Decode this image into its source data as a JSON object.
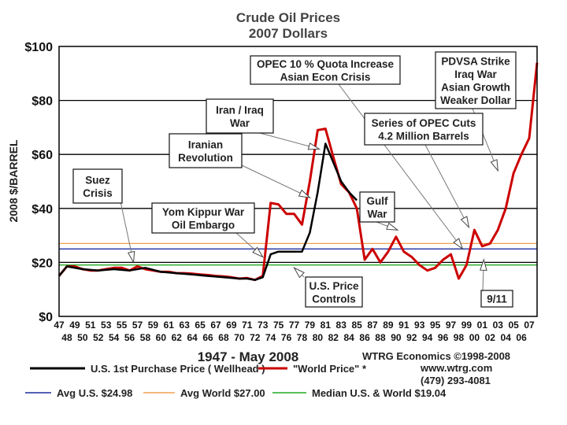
{
  "chart_data": {
    "type": "line",
    "title": "Crude Oil Prices",
    "subtitle": "2007 Dollars",
    "ylabel": "2008 $/BARREL",
    "xlabel": "1947 - May 2008",
    "ylim": [
      0,
      100
    ],
    "xlim": [
      1947,
      2008
    ],
    "grid": true,
    "y_ticks": [
      "$0",
      "$20",
      "$40",
      "$60",
      "$80",
      "$100"
    ],
    "x_ticks_top": [
      "47",
      "49",
      "51",
      "53",
      "55",
      "57",
      "59",
      "61",
      "63",
      "65",
      "67",
      "69",
      "71",
      "73",
      "75",
      "77",
      "79",
      "81",
      "83",
      "85",
      "87",
      "89",
      "91",
      "93",
      "95",
      "97",
      "99",
      "01",
      "03",
      "05",
      "07"
    ],
    "x_ticks_bottom": [
      "48",
      "50",
      "52",
      "54",
      "56",
      "58",
      "60",
      "62",
      "64",
      "66",
      "68",
      "70",
      "72",
      "74",
      "76",
      "78",
      "80",
      "82",
      "84",
      "86",
      "88",
      "90",
      "92",
      "94",
      "96",
      "98",
      "00",
      "02",
      "04",
      "06"
    ],
    "series": [
      {
        "name": "U.S. 1st Purchase Price ( Wellhead )",
        "color": "#000000",
        "x": [
          1947,
          1948,
          1950,
          1952,
          1954,
          1956,
          1958,
          1960,
          1962,
          1964,
          1966,
          1968,
          1970,
          1971,
          1972,
          1973,
          1974,
          1975,
          1976,
          1977,
          1978,
          1979,
          1980,
          1981,
          1982,
          1983,
          1984,
          1985
        ],
        "y": [
          15,
          18.5,
          17.5,
          17,
          17.5,
          17,
          18,
          16.5,
          16,
          15.5,
          15,
          14.5,
          14,
          14,
          13.5,
          14.5,
          23,
          24,
          24,
          24,
          24,
          31,
          46,
          64,
          57,
          50,
          46,
          43
        ]
      },
      {
        "name": "\"World Price\" *",
        "color": "#cc0000",
        "x": [
          1947,
          1948,
          1949,
          1950,
          1951,
          1952,
          1953,
          1954,
          1955,
          1956,
          1957,
          1958,
          1959,
          1960,
          1961,
          1962,
          1963,
          1964,
          1965,
          1966,
          1967,
          1968,
          1969,
          1970,
          1971,
          1972,
          1973,
          1974,
          1975,
          1976,
          1977,
          1978,
          1979,
          1980,
          1981,
          1982,
          1983,
          1984,
          1985,
          1986,
          1987,
          1988,
          1989,
          1990,
          1991,
          1992,
          1993,
          1994,
          1995,
          1996,
          1997,
          1998,
          1999,
          2000,
          2001,
          2002,
          2003,
          2004,
          2005,
          2006,
          2007,
          2008
        ],
        "y": [
          15,
          18.5,
          18.5,
          17.5,
          17,
          17,
          17.5,
          18,
          18,
          17,
          18.5,
          17.5,
          17,
          16.5,
          16.5,
          16,
          16,
          15.8,
          15.5,
          15.3,
          15,
          14.8,
          14.5,
          14,
          14.2,
          13.5,
          15,
          42,
          41.5,
          38,
          38,
          34,
          50,
          69,
          69.5,
          59,
          49,
          46,
          40,
          21,
          25,
          20,
          24,
          29.5,
          24,
          22,
          19,
          17,
          18,
          21,
          23,
          14,
          19,
          32,
          26,
          27,
          32,
          40,
          53,
          60,
          66,
          94
        ]
      }
    ],
    "reference_lines": [
      {
        "name": "Avg U.S. $24.98",
        "value": 24.98,
        "color": "#1f2f9f"
      },
      {
        "name": "Avg World $27.00",
        "value": 27.0,
        "color": "#f0a050"
      },
      {
        "name": "Median U.S. & World  $19.04",
        "value": 19.04,
        "color": "#22aa22"
      }
    ],
    "annotations": [
      {
        "lines": [
          "Suez",
          "Crisis"
        ],
        "target_year": 1956.5,
        "target_value": 20
      },
      {
        "lines": [
          "Yom Kippur War",
          "Oil Embargo"
        ],
        "target_year": 1973,
        "target_value": 22
      },
      {
        "lines": [
          "Iranian",
          "Revolution"
        ],
        "target_year": 1979,
        "target_value": 44
      },
      {
        "lines": [
          "Iran / Iraq",
          "War"
        ],
        "target_year": 1980.2,
        "target_value": 62
      },
      {
        "lines": [
          "OPEC 10 % Quota Increase",
          "Asian Econ Crisis"
        ],
        "target_year": 1998.5,
        "target_value": 25
      },
      {
        "lines": [
          "PDVSA Strike",
          "Iraq War",
          "Asian Growth",
          "Weaker Dollar"
        ],
        "target_year": 2003,
        "target_value": 54
      },
      {
        "lines": [
          "Series of OPEC Cuts",
          "4.2 Million Barrels"
        ],
        "target_year": 1999.3,
        "target_value": 33
      },
      {
        "lines": [
          "Gulf",
          "War"
        ],
        "target_year": 1990.2,
        "target_value": 32
      },
      {
        "lines": [
          "U.S. Price",
          "Controls"
        ],
        "target_year": 1977,
        "target_value": 18
      },
      {
        "lines": [
          "9/11"
        ],
        "target_year": 2001.2,
        "target_value": 21
      }
    ]
  },
  "credits": {
    "org": "WTRG Economics  ©1998-2008",
    "url": "www.wtrg.com",
    "phone": "(479) 293-4081"
  }
}
